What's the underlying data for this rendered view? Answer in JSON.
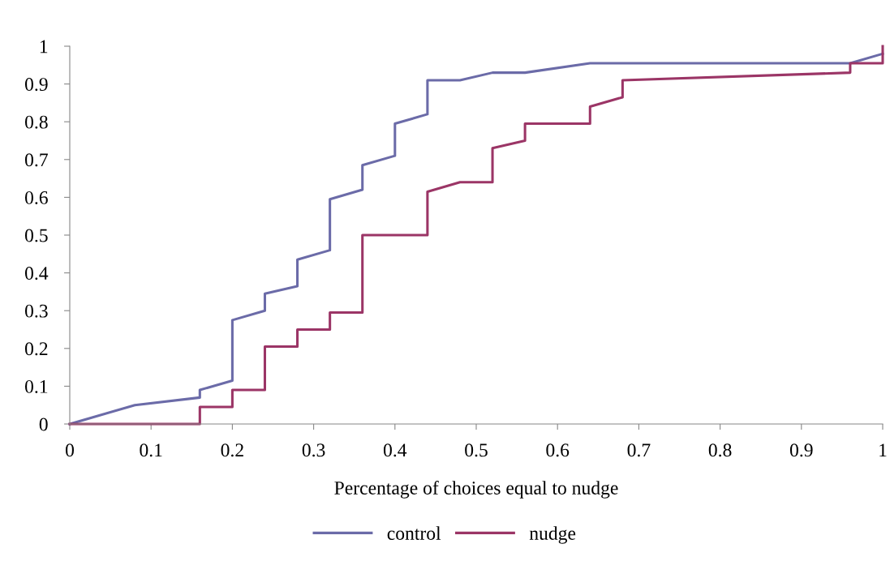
{
  "chart_data": {
    "type": "line",
    "xlabel": "Percentage of choices equal to nudge",
    "xlim": [
      0,
      1
    ],
    "ylim": [
      0,
      1
    ],
    "xticks": [
      0,
      0.1,
      0.2,
      0.3,
      0.4,
      0.5,
      0.6,
      0.7,
      0.8,
      0.9,
      1
    ],
    "yticks": [
      0,
      0.1,
      0.2,
      0.3,
      0.4,
      0.5,
      0.6,
      0.7,
      0.8,
      0.9,
      1
    ],
    "legend": "bottom",
    "grid": false,
    "marker": "none",
    "line_style": "solid",
    "series": [
      {
        "name": "control",
        "color": "#6b6ba8",
        "x": [
          0,
          0.08,
          0.16,
          0.16,
          0.2,
          0.2,
          0.24,
          0.24,
          0.28,
          0.28,
          0.32,
          0.32,
          0.36,
          0.36,
          0.4,
          0.4,
          0.44,
          0.44,
          0.48,
          0.52,
          0.56,
          0.64,
          0.96,
          1
        ],
        "values": [
          0,
          0.05,
          0.07,
          0.09,
          0.115,
          0.275,
          0.3,
          0.345,
          0.365,
          0.435,
          0.46,
          0.595,
          0.62,
          0.685,
          0.71,
          0.795,
          0.82,
          0.91,
          0.91,
          0.93,
          0.93,
          0.955,
          0.955,
          0.98
        ]
      },
      {
        "name": "nudge",
        "color": "#9b3566",
        "x": [
          0,
          0.16,
          0.16,
          0.2,
          0.2,
          0.24,
          0.24,
          0.28,
          0.28,
          0.32,
          0.32,
          0.36,
          0.36,
          0.44,
          0.44,
          0.48,
          0.52,
          0.52,
          0.56,
          0.56,
          0.64,
          0.64,
          0.68,
          0.68,
          0.96,
          0.96,
          1,
          1
        ],
        "values": [
          0,
          0,
          0.045,
          0.045,
          0.09,
          0.09,
          0.205,
          0.205,
          0.25,
          0.25,
          0.295,
          0.295,
          0.5,
          0.5,
          0.615,
          0.64,
          0.64,
          0.73,
          0.75,
          0.795,
          0.795,
          0.84,
          0.865,
          0.91,
          0.93,
          0.955,
          0.955,
          1
        ]
      }
    ]
  }
}
